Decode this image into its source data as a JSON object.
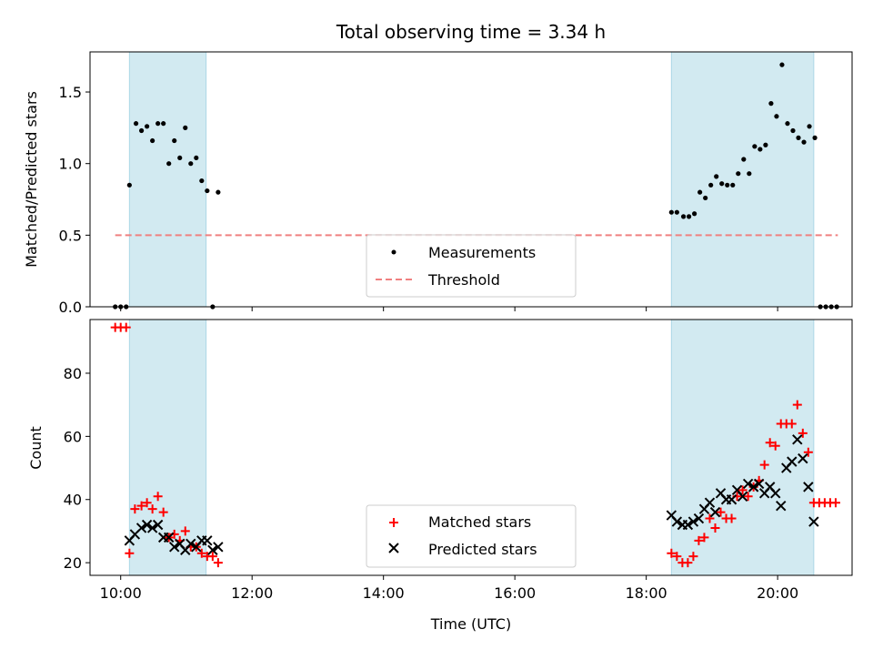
{
  "title": "Total observing time = 3.34 h",
  "xlabel": "Time (UTC)",
  "x_ticks": [
    "10:00",
    "12:00",
    "14:00",
    "16:00",
    "18:00",
    "20:00"
  ],
  "colors": {
    "shade": "#add8e6",
    "measurement": "#000000",
    "threshold": "#f08080",
    "matched": "#ff0000",
    "predicted": "#000000"
  },
  "chart_data": [
    {
      "type": "scatter",
      "ylabel": "Matched/Predicted stars",
      "xlim": [
        "09:32",
        "21:08"
      ],
      "ylim": [
        0,
        1.78
      ],
      "y_ticks": [
        "0.0",
        "0.5",
        "1.0",
        "1.5"
      ],
      "y_tick_values": [
        0,
        0.5,
        1.0,
        1.5
      ],
      "shaded_ranges": [
        [
          "10:08",
          "11:18"
        ],
        [
          "18:23",
          "20:33"
        ]
      ],
      "threshold": {
        "name": "Threshold",
        "value": 0.5,
        "x_range": [
          "09:55",
          "20:55"
        ]
      },
      "legend": {
        "placement": "lower-center",
        "entries": [
          "Measurements",
          "Threshold"
        ]
      },
      "series": [
        {
          "name": "Measurements",
          "marker": "dot",
          "points": [
            [
              "09:55",
              0
            ],
            [
              "10:00",
              0
            ],
            [
              "10:05",
              0
            ],
            [
              "10:08",
              0.85
            ],
            [
              "10:14",
              1.28
            ],
            [
              "10:19",
              1.23
            ],
            [
              "10:24",
              1.26
            ],
            [
              "10:29",
              1.16
            ],
            [
              "10:34",
              1.28
            ],
            [
              "10:39",
              1.28
            ],
            [
              "10:44",
              1.0
            ],
            [
              "10:49",
              1.16
            ],
            [
              "10:54",
              1.04
            ],
            [
              "10:59",
              1.25
            ],
            [
              "11:04",
              1.0
            ],
            [
              "11:09",
              1.04
            ],
            [
              "11:14",
              0.88
            ],
            [
              "11:19",
              0.81
            ],
            [
              "11:24",
              0
            ],
            [
              "11:29",
              0.8
            ],
            [
              "18:23",
              0.66
            ],
            [
              "18:28",
              0.66
            ],
            [
              "18:34",
              0.63
            ],
            [
              "18:39",
              0.63
            ],
            [
              "18:44",
              0.65
            ],
            [
              "18:49",
              0.8
            ],
            [
              "18:54",
              0.76
            ],
            [
              "18:59",
              0.85
            ],
            [
              "19:04",
              0.91
            ],
            [
              "19:09",
              0.86
            ],
            [
              "19:14",
              0.85
            ],
            [
              "19:19",
              0.85
            ],
            [
              "19:24",
              0.93
            ],
            [
              "19:29",
              1.03
            ],
            [
              "19:34",
              0.93
            ],
            [
              "19:39",
              1.12
            ],
            [
              "19:44",
              1.1
            ],
            [
              "19:49",
              1.13
            ],
            [
              "19:54",
              1.42
            ],
            [
              "19:59",
              1.33
            ],
            [
              "20:04",
              1.69
            ],
            [
              "20:09",
              1.28
            ],
            [
              "20:14",
              1.23
            ],
            [
              "20:19",
              1.18
            ],
            [
              "20:24",
              1.15
            ],
            [
              "20:29",
              1.26
            ],
            [
              "20:34",
              1.18
            ],
            [
              "20:39",
              0
            ],
            [
              "20:44",
              0
            ],
            [
              "20:49",
              0
            ],
            [
              "20:54",
              0
            ]
          ]
        }
      ]
    },
    {
      "type": "scatter",
      "ylabel": "Count",
      "xlim": [
        "09:32",
        "21:08"
      ],
      "ylim": [
        16,
        97
      ],
      "y_ticks": [
        "20",
        "40",
        "60",
        "80"
      ],
      "y_tick_values": [
        20,
        40,
        60,
        80
      ],
      "shaded_ranges": [
        [
          "10:08",
          "11:18"
        ],
        [
          "18:23",
          "20:33"
        ]
      ],
      "legend": {
        "placement": "lower-center",
        "entries": [
          "Matched stars",
          "Predicted stars"
        ]
      },
      "series": [
        {
          "name": "Matched stars",
          "marker": "plus",
          "points": [
            [
              "09:55",
              94.5
            ],
            [
              "10:00",
              94.5
            ],
            [
              "10:05",
              94.5
            ],
            [
              "10:08",
              23
            ],
            [
              "10:13",
              37
            ],
            [
              "10:19",
              38
            ],
            [
              "10:24",
              39
            ],
            [
              "10:29",
              37
            ],
            [
              "10:34",
              41
            ],
            [
              "10:39",
              36
            ],
            [
              "10:44",
              28
            ],
            [
              "10:49",
              29
            ],
            [
              "10:54",
              27
            ],
            [
              "10:59",
              30
            ],
            [
              "11:04",
              25
            ],
            [
              "11:09",
              25
            ],
            [
              "11:14",
              23
            ],
            [
              "11:19",
              22
            ],
            [
              "11:24",
              22
            ],
            [
              "11:29",
              20
            ],
            [
              "18:23",
              23
            ],
            [
              "18:28",
              22
            ],
            [
              "18:33",
              20
            ],
            [
              "18:38",
              20
            ],
            [
              "18:43",
              22
            ],
            [
              "18:48",
              27
            ],
            [
              "18:53",
              28
            ],
            [
              "18:58",
              34
            ],
            [
              "19:03",
              31
            ],
            [
              "19:08",
              36
            ],
            [
              "19:13",
              34
            ],
            [
              "19:18",
              34
            ],
            [
              "19:23",
              41
            ],
            [
              "19:28",
              43
            ],
            [
              "19:33",
              41
            ],
            [
              "19:38",
              44
            ],
            [
              "19:43",
              46
            ],
            [
              "19:48",
              51
            ],
            [
              "19:53",
              58
            ],
            [
              "19:58",
              57
            ],
            [
              "20:03",
              64
            ],
            [
              "20:08",
              64
            ],
            [
              "20:13",
              64
            ],
            [
              "20:18",
              70
            ],
            [
              "20:23",
              61
            ],
            [
              "20:28",
              55
            ],
            [
              "20:33",
              39
            ],
            [
              "20:38",
              39
            ],
            [
              "20:43",
              39
            ],
            [
              "20:48",
              39
            ],
            [
              "20:53",
              39
            ]
          ]
        },
        {
          "name": "Predicted stars",
          "marker": "cross",
          "points": [
            [
              "10:08",
              27
            ],
            [
              "10:13",
              29
            ],
            [
              "10:19",
              31
            ],
            [
              "10:24",
              32
            ],
            [
              "10:29",
              31
            ],
            [
              "10:34",
              32
            ],
            [
              "10:39",
              28
            ],
            [
              "10:44",
              28
            ],
            [
              "10:49",
              25
            ],
            [
              "10:54",
              26
            ],
            [
              "10:59",
              24
            ],
            [
              "11:04",
              26
            ],
            [
              "11:09",
              25
            ],
            [
              "11:14",
              27
            ],
            [
              "11:19",
              27
            ],
            [
              "11:24",
              24
            ],
            [
              "11:29",
              25
            ],
            [
              "18:23",
              35
            ],
            [
              "18:28",
              33
            ],
            [
              "18:33",
              32
            ],
            [
              "18:38",
              32
            ],
            [
              "18:43",
              33
            ],
            [
              "18:48",
              34
            ],
            [
              "18:53",
              37
            ],
            [
              "18:58",
              39
            ],
            [
              "19:03",
              36
            ],
            [
              "19:08",
              42
            ],
            [
              "19:13",
              40
            ],
            [
              "19:18",
              40
            ],
            [
              "19:23",
              43
            ],
            [
              "19:28",
              41
            ],
            [
              "19:33",
              45
            ],
            [
              "19:38",
              44
            ],
            [
              "19:43",
              45
            ],
            [
              "19:48",
              42
            ],
            [
              "19:53",
              44
            ],
            [
              "19:58",
              42
            ],
            [
              "20:03",
              38
            ],
            [
              "20:08",
              50
            ],
            [
              "20:13",
              52
            ],
            [
              "20:18",
              59
            ],
            [
              "20:23",
              53
            ],
            [
              "20:28",
              44
            ],
            [
              "20:33",
              33
            ]
          ]
        }
      ]
    }
  ]
}
